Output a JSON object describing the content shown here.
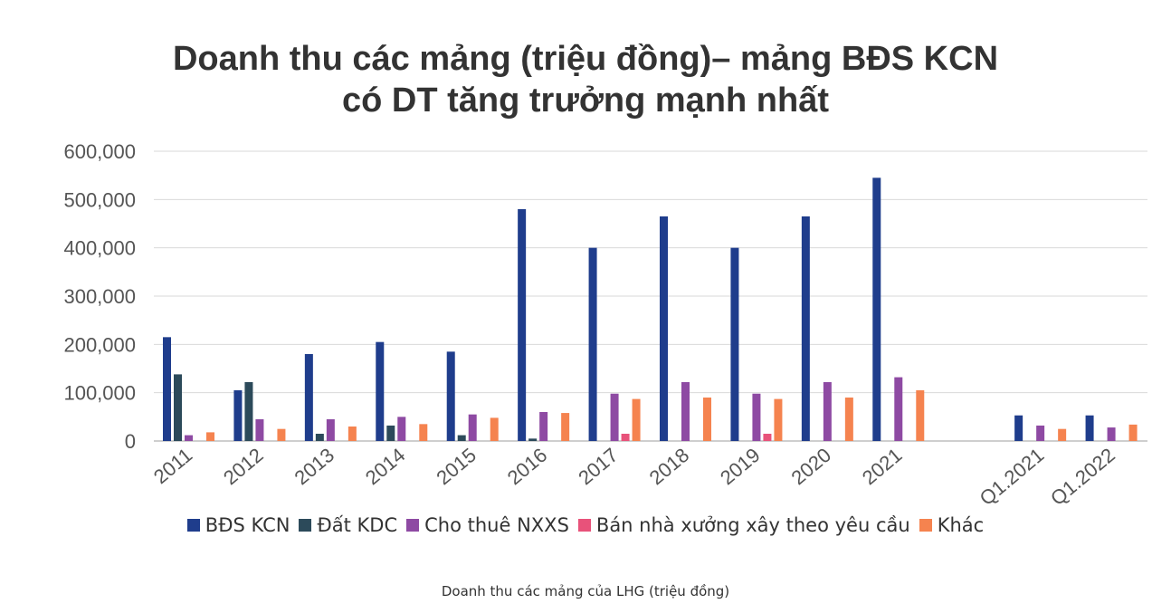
{
  "chart_data": {
    "type": "bar",
    "title_lines": [
      "Doanh thu các mảng (triệu đồng)– mảng BĐS KCN",
      "có DT tăng trưởng mạnh nhất"
    ],
    "categories": [
      "2011",
      "2012",
      "2013",
      "2014",
      "2015",
      "2016",
      "2017",
      "2018",
      "2019",
      "2020",
      "2021",
      "",
      "Q1.2021",
      "Q1.2022"
    ],
    "ylim": [
      0,
      600000
    ],
    "yticks": [
      "0",
      "100,000",
      "200,000",
      "300,000",
      "400,000",
      "500,000",
      "600,000"
    ],
    "grid": true,
    "legend_position": "bottom",
    "series": [
      {
        "name": "BĐS KCN",
        "color": "#1f3d8c",
        "values": [
          215000,
          105000,
          180000,
          205000,
          185000,
          480000,
          400000,
          465000,
          400000,
          465000,
          545000,
          null,
          53000,
          53000
        ]
      },
      {
        "name": "Đất KDC",
        "color": "#2c4a5a",
        "values": [
          138000,
          122000,
          15000,
          32000,
          12000,
          5000,
          null,
          null,
          null,
          null,
          null,
          null,
          null,
          null
        ]
      },
      {
        "name": "Cho thuê NXXS",
        "color": "#8e4aa3",
        "values": [
          12000,
          45000,
          45000,
          50000,
          55000,
          60000,
          98000,
          122000,
          98000,
          122000,
          132000,
          null,
          32000,
          28000
        ]
      },
      {
        "name": "Bán nhà xưởng xây theo yêu cầu",
        "color": "#e8527a",
        "values": [
          null,
          null,
          null,
          null,
          null,
          null,
          15000,
          null,
          15000,
          null,
          null,
          null,
          null,
          null
        ]
      },
      {
        "name": "Khác",
        "color": "#f5834f",
        "values": [
          18000,
          25000,
          30000,
          35000,
          48000,
          58000,
          87000,
          90000,
          87000,
          90000,
          105000,
          null,
          25000,
          34000
        ]
      }
    ]
  },
  "caption": "Doanh thu các mảng của LHG (triệu đồng)"
}
